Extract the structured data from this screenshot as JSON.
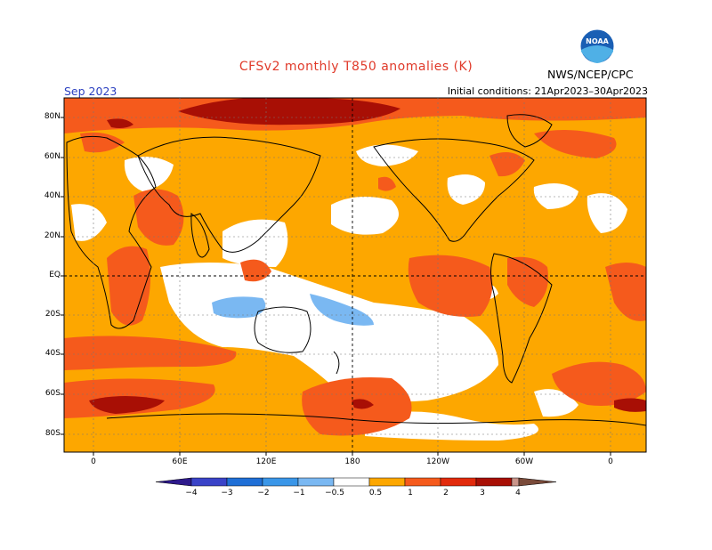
{
  "title": "CFSv2 monthly T850 anomalies (K)",
  "agency": "NWS/NCEP/CPC",
  "logo_text": "NOAA",
  "period": "Sep 2023",
  "initial_conditions": "Initial conditions: 21Apr2023–30Apr2023",
  "lat_labels": [
    "80N",
    "60N",
    "40N",
    "20N",
    "EQ",
    "20S",
    "40S",
    "60S",
    "80S"
  ],
  "lon_labels": [
    "0",
    "60E",
    "120E",
    "180",
    "120W",
    "60W",
    "0"
  ],
  "colorbar": {
    "labels": [
      "−4",
      "−3",
      "−2",
      "−1",
      "−0.5",
      "0.5",
      "1",
      "2",
      "3",
      "4"
    ],
    "colors": [
      "#2e1a8c",
      "#3a43c8",
      "#1f6fd6",
      "#3a96e8",
      "#7ab8f2",
      "#ffffff",
      "#fda700",
      "#f55a1c",
      "#e22a0c",
      "#a80f05",
      "#c9958a",
      "#7a4b3a"
    ]
  },
  "colors": {
    "warm_05": "#fda700",
    "warm_1": "#f55a1c",
    "warm_2": "#e22a0c",
    "warm_3": "#a80f05",
    "cool_05": "#7ab8f2"
  }
}
